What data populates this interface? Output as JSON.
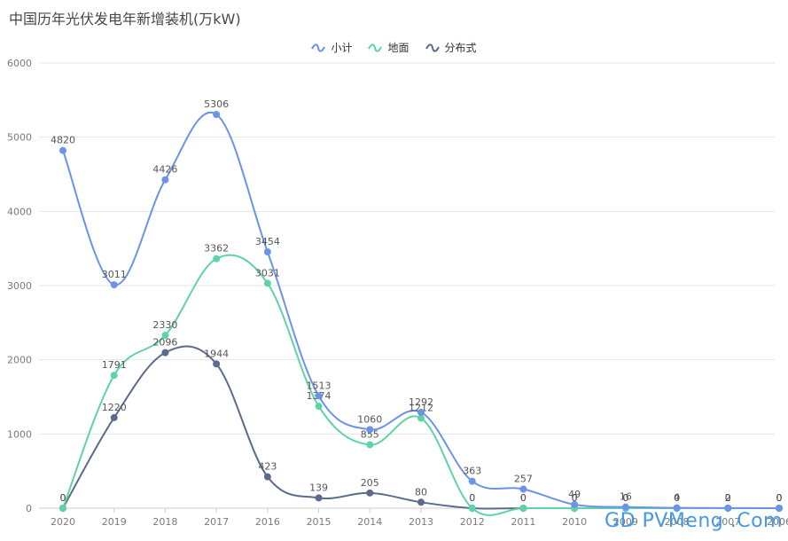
{
  "colors": {
    "subtotal": "#6b93e8",
    "ground": "#5fd3a8",
    "distributed": "#5b6b8b",
    "grid": "#e6e6e6",
    "axis_text": "#7a7a7a"
  },
  "chart_data": {
    "type": "line",
    "title": "中国历年光伏发电年新增装机(万kW)",
    "categories": [
      "2020",
      "2019",
      "2018",
      "2017",
      "2016",
      "2015",
      "2014",
      "2013",
      "2012",
      "2011",
      "2010",
      "2009",
      "2008",
      "2007",
      "2006"
    ],
    "ylim": [
      0,
      6000
    ],
    "yticks": [
      0,
      1000,
      2000,
      3000,
      4000,
      5000,
      6000
    ],
    "grid": true,
    "legend_position": "top-center",
    "series": [
      {
        "name": "小计",
        "color_key": "subtotal",
        "values": [
          4820,
          3011,
          4426,
          5306,
          3454,
          1513,
          1060,
          1292,
          363,
          257,
          49,
          16,
          4,
          2,
          0
        ],
        "labels": [
          "4820",
          "3011",
          "4426",
          "5306",
          "3454",
          "1513",
          "1060",
          "1292",
          "363",
          "257",
          "49",
          "16",
          "4",
          "2",
          "0"
        ]
      },
      {
        "name": "地面",
        "color_key": "ground",
        "values": [
          0,
          1791,
          2330,
          3362,
          3031,
          1374,
          855,
          1212,
          0,
          0,
          0,
          0,
          0,
          0,
          0
        ],
        "labels": [
          "0",
          "1791",
          "2330",
          "3362",
          "3031",
          "1374",
          "855",
          "1212",
          "0",
          "0",
          "0",
          "0",
          "0",
          "0",
          "0"
        ]
      },
      {
        "name": "分布式",
        "color_key": "distributed",
        "values": [
          0,
          1220,
          2096,
          1944,
          423,
          139,
          205,
          80,
          0,
          0,
          0,
          0,
          0,
          0,
          0
        ],
        "labels": [
          "0",
          "1220",
          "2096",
          "1944",
          "423",
          "139",
          "205",
          "80",
          "0",
          "0",
          "0",
          "0",
          "0",
          "0",
          "0"
        ]
      }
    ]
  },
  "watermark": "GD PVMeng .Com"
}
